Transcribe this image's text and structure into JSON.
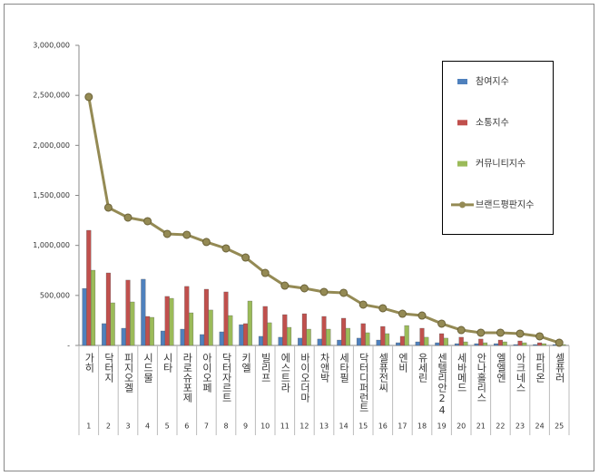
{
  "chart_data": {
    "type": "bar",
    "categories": [
      "가히",
      "닥터지",
      "피지오겔",
      "시드물",
      "시타",
      "라로슈포제",
      "아이오페",
      "닥터자르트",
      "키엘",
      "빌리프",
      "에스트라",
      "바이오더마",
      "차앤박",
      "세타필",
      "닥터디퍼런트",
      "셀퓨전씨",
      "엔비",
      "유세린",
      "센텔리안24",
      "세바메드",
      "안나홀리스",
      "엘엘엔",
      "아크네스",
      "파티온",
      "셀퓨러"
    ],
    "category_ranks": [
      1,
      2,
      3,
      4,
      5,
      6,
      7,
      8,
      9,
      10,
      11,
      12,
      13,
      14,
      15,
      16,
      17,
      18,
      19,
      20,
      21,
      22,
      23,
      24,
      25
    ],
    "series": [
      {
        "name": "참여지수",
        "type": "bar",
        "color": "#4f81bd",
        "values": [
          570000,
          218000,
          172000,
          662000,
          145000,
          163000,
          109000,
          136000,
          208000,
          91000,
          82000,
          73000,
          64000,
          54000,
          73000,
          54000,
          27000,
          36000,
          27000,
          18000,
          18000,
          18000,
          9000,
          9000,
          9000
        ]
      },
      {
        "name": "소통지수",
        "type": "bar",
        "color": "#c0504d",
        "values": [
          1151000,
          725000,
          653000,
          290000,
          490000,
          590000,
          562000,
          535000,
          218000,
          390000,
          308000,
          317000,
          290000,
          272000,
          218000,
          190000,
          91000,
          172000,
          118000,
          82000,
          64000,
          54000,
          45000,
          27000,
          9000
        ]
      },
      {
        "name": "커뮤니티지수",
        "type": "bar",
        "color": "#9bbb59",
        "values": [
          752000,
          426000,
          435000,
          281000,
          471000,
          326000,
          354000,
          299000,
          444000,
          227000,
          181000,
          163000,
          163000,
          172000,
          127000,
          118000,
          199000,
          82000,
          73000,
          36000,
          27000,
          36000,
          27000,
          18000,
          9000
        ]
      },
      {
        "name": "브랜드평판지수",
        "type": "line",
        "color": "#948a54",
        "values": [
          2484000,
          1378000,
          1278000,
          1242000,
          1115000,
          1106000,
          1034000,
          970000,
          879000,
          725000,
          598000,
          571000,
          535000,
          526000,
          408000,
          372000,
          317000,
          299000,
          218000,
          154000,
          127000,
          127000,
          118000,
          91000,
          27000
        ]
      }
    ],
    "ylim": [
      0,
      3000000
    ],
    "yticks": [
      {
        "value": 0,
        "label": "-"
      },
      {
        "value": 500000,
        "label": "500,000"
      },
      {
        "value": 1000000,
        "label": "1,000,000"
      },
      {
        "value": 1500000,
        "label": "1,500,000"
      },
      {
        "value": 2000000,
        "label": "2,000,000"
      },
      {
        "value": 2500000,
        "label": "2,500,000"
      },
      {
        "value": 3000000,
        "label": "3,000,000"
      }
    ],
    "grid": false,
    "legend": "right"
  }
}
